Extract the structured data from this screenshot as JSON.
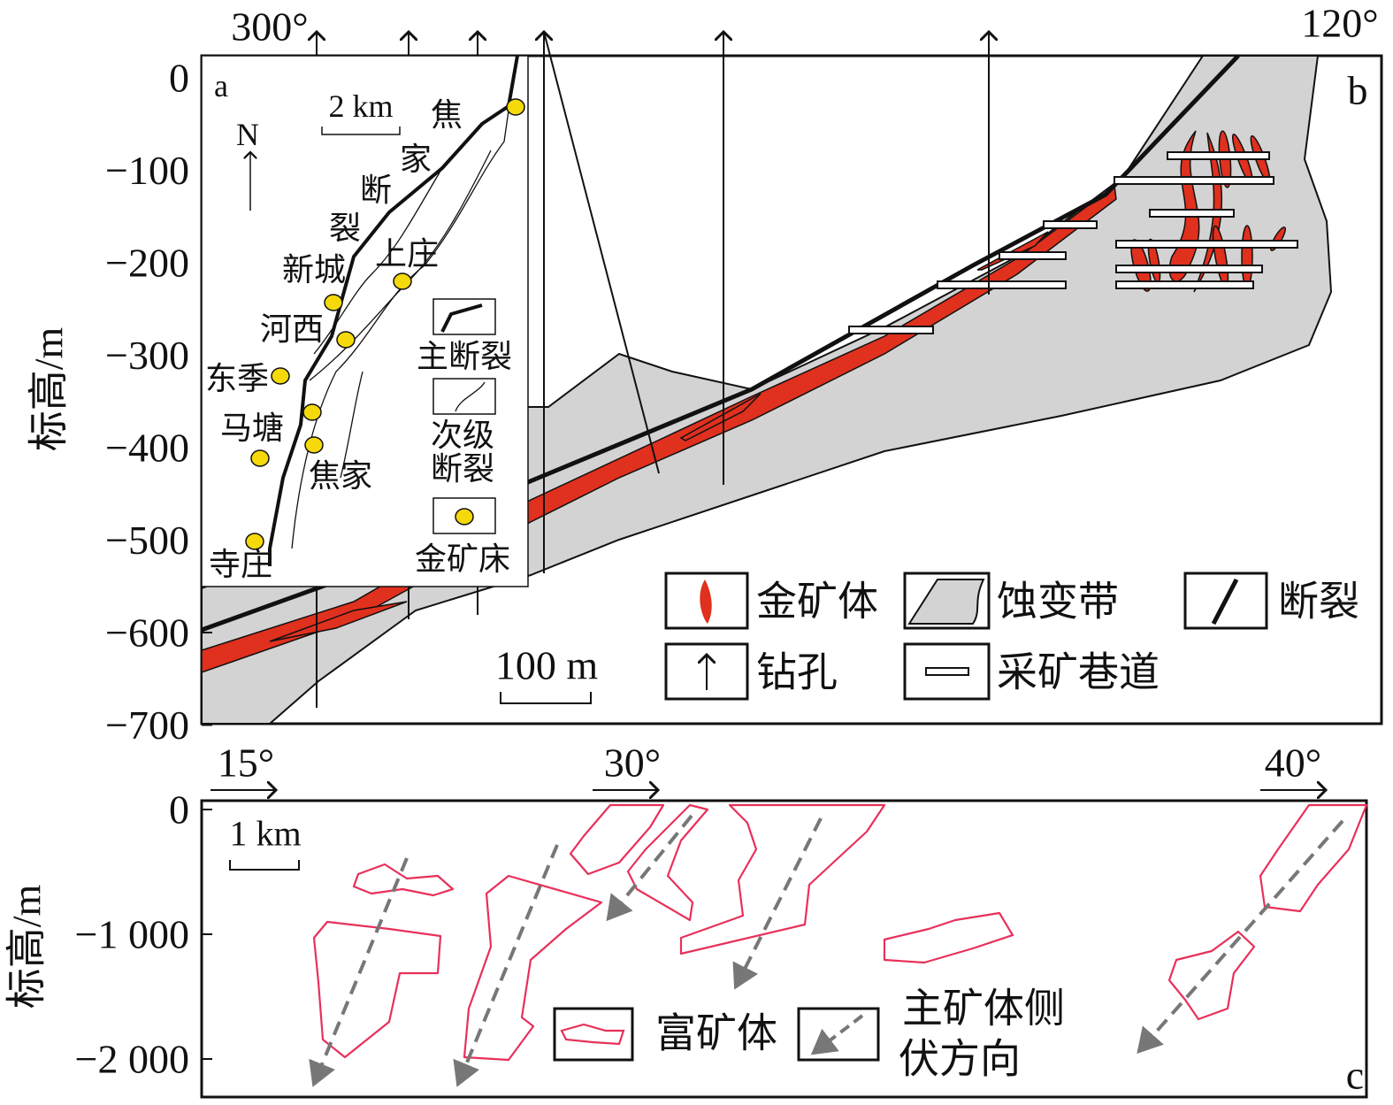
{
  "panel_b": {
    "label": "b",
    "left_direction": "300°",
    "right_direction": "120°",
    "y_axis_title": "标高/m",
    "y_ticks": [
      "0",
      "−100",
      "−200",
      "−300",
      "−400",
      "−500",
      "−600",
      "−700"
    ],
    "scale_bar": "100 m",
    "legend": [
      "金矿体",
      "蚀变带",
      "断裂",
      "钻孔",
      "采矿巷道"
    ]
  },
  "inset_a": {
    "label": "a",
    "north": "N",
    "scale_bar": "2 km",
    "fault_name": [
      "焦",
      "家",
      "断",
      "裂"
    ],
    "places": [
      "上庄",
      "新城",
      "河西",
      "东季",
      "马塘",
      "焦家",
      "寺庄"
    ],
    "legend": [
      [
        "主断裂"
      ],
      [
        "次级",
        "断裂"
      ],
      [
        "金矿床"
      ]
    ]
  },
  "panel_c": {
    "label": "c",
    "directions": [
      "15°",
      "30°",
      "40°"
    ],
    "y_axis_title": "标高/m",
    "y_ticks": [
      "0",
      "−1 000",
      "−2 000"
    ],
    "scale_bar": "1 km",
    "legend": [
      [
        "富矿体"
      ],
      [
        "主矿体侧",
        "伏方向"
      ]
    ]
  }
}
